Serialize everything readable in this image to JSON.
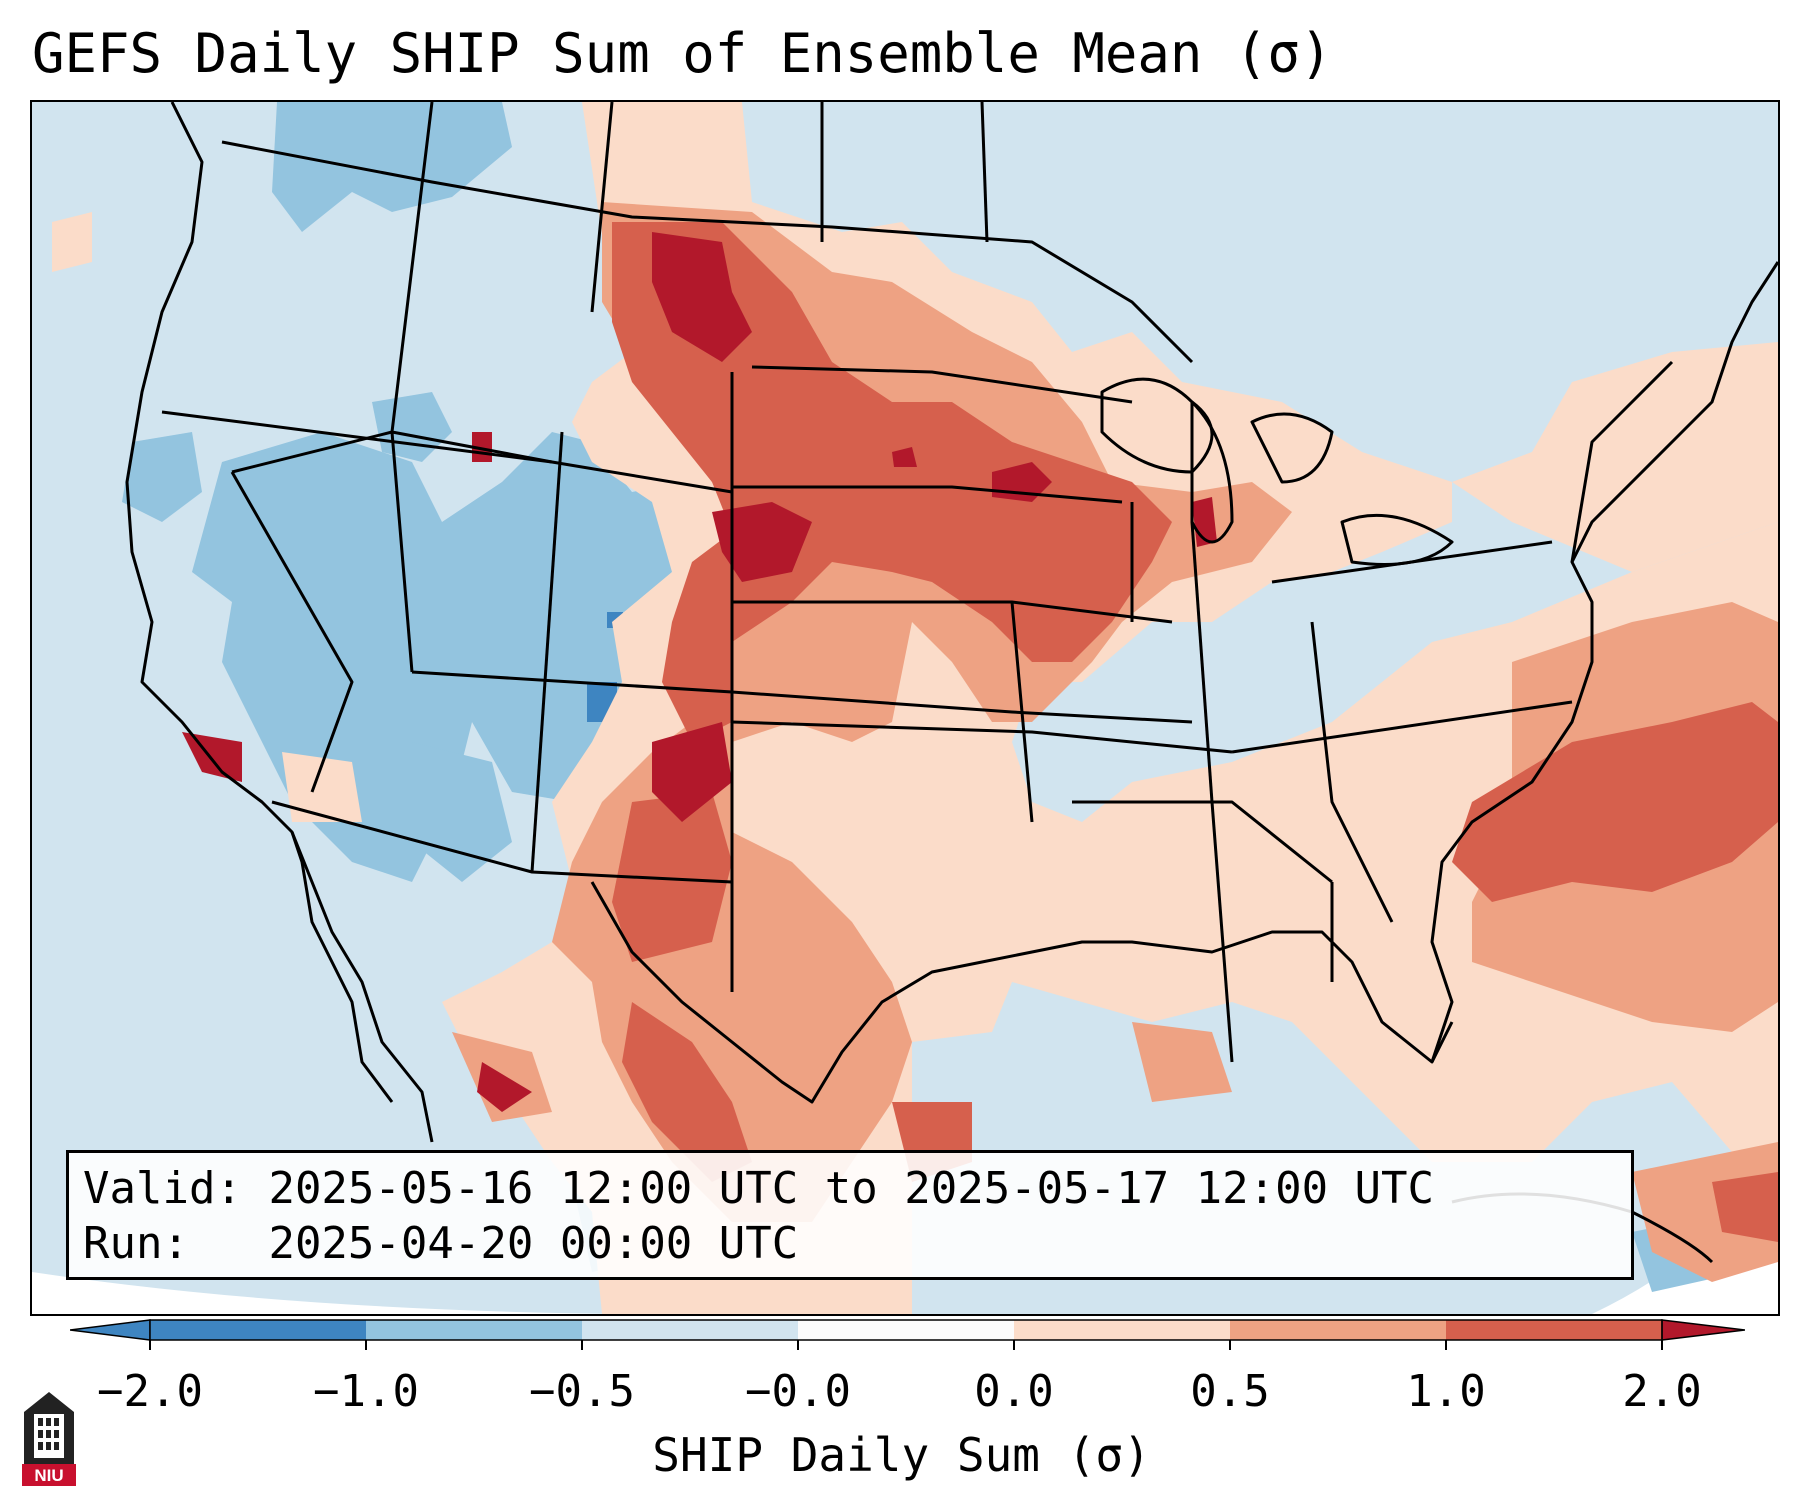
{
  "title": "GEFS Daily SHIP Sum of Ensemble Mean (σ)",
  "info": {
    "valid_label": "Valid:",
    "valid_range": "2025-05-16 12:00 UTC to 2025-05-17 12:00 UTC",
    "run_label": "Run:",
    "run_time": "2025-04-20 00:00 UTC"
  },
  "colorbar": {
    "label": "SHIP Daily Sum (σ)",
    "ticks": [
      "−2.0",
      "−1.0",
      "−0.5",
      "−0.0",
      "0.0",
      "0.5",
      "1.0",
      "2.0"
    ],
    "colors": [
      "#3e85c1",
      "#93c4df",
      "#d1e4ef",
      "#fbfbfb",
      "#fbdcc9",
      "#eea283",
      "#d6604d",
      "#b2182b"
    ],
    "extend": "both"
  },
  "logo_text": "NIU",
  "colors": {
    "ocean_light": "#d1e4ef",
    "neg_moderate": "#93c4df",
    "neg_strong": "#3e85c1",
    "pos_light": "#fbdcc9",
    "pos_moderate": "#eea283",
    "pos_strong": "#d6604d",
    "pos_extreme": "#b2182b"
  }
}
